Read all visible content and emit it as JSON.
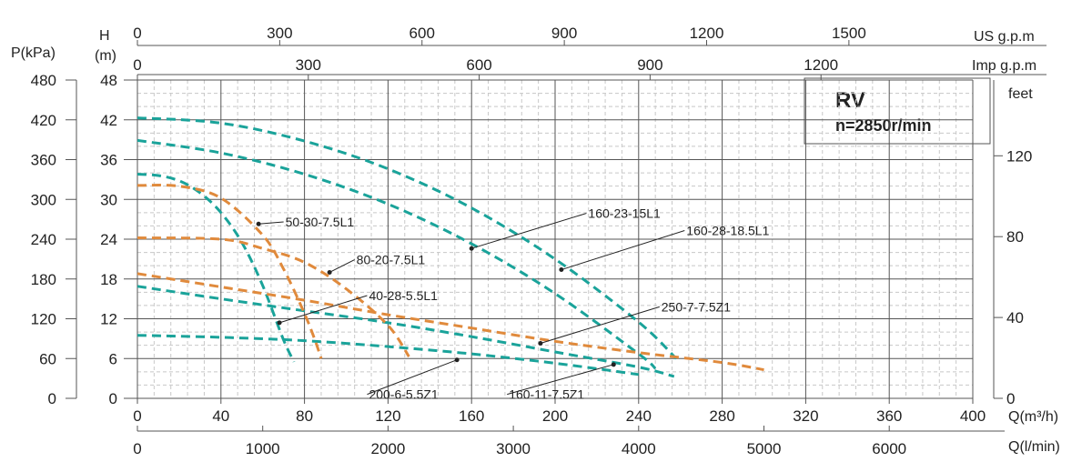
{
  "chart_data": {
    "type": "line",
    "title_box": {
      "model": "RV",
      "speed": "n=2850r/min"
    },
    "x_axis": {
      "label": "Q(m³/h)",
      "range": [
        0,
        400
      ],
      "ticks": [
        "0",
        "40",
        "80",
        "120",
        "160",
        "200",
        "240",
        "280",
        "320",
        "360",
        "400"
      ]
    },
    "x_axis_ls": {
      "label": "Q(l/min)",
      "ticks": [
        {
          "value": 0,
          "label": "0"
        },
        {
          "value": 1000,
          "label": "1000"
        },
        {
          "value": 2000,
          "label": "2000"
        },
        {
          "value": 3000,
          "label": "3000"
        },
        {
          "value": 4000,
          "label": "4000"
        },
        {
          "value": 5000,
          "label": "5000"
        },
        {
          "value": 6000,
          "label": "6000"
        }
      ]
    },
    "x_axis_us": {
      "label": "US g.p.m",
      "ticks": [
        {
          "value": 0,
          "label": "0"
        },
        {
          "value": 300,
          "label": "300"
        },
        {
          "value": 600,
          "label": "600"
        },
        {
          "value": 900,
          "label": "900"
        },
        {
          "value": 1200,
          "label": "1200"
        },
        {
          "value": 1500,
          "label": "1500"
        }
      ]
    },
    "x_axis_imp": {
      "label": "Imp g.p.m",
      "ticks": [
        {
          "value": 0,
          "label": "0"
        },
        {
          "value": 300,
          "label": "300"
        },
        {
          "value": 600,
          "label": "600"
        },
        {
          "value": 900,
          "label": "900"
        },
        {
          "value": 1200,
          "label": "1200"
        }
      ]
    },
    "y_axis_h": {
      "label_line1": "H",
      "label_line2": "(m)",
      "range": [
        0,
        48
      ],
      "ticks": [
        "0",
        "6",
        "12",
        "18",
        "24",
        "30",
        "36",
        "42",
        "48"
      ]
    },
    "y_axis_p": {
      "label": "P(kPa)",
      "ticks": [
        "0",
        "60",
        "120",
        "180",
        "240",
        "300",
        "360",
        "420",
        "480"
      ]
    },
    "y_axis_ft": {
      "label": "feet",
      "ticks": [
        {
          "value": 0,
          "label": "0"
        },
        {
          "value": 40,
          "label": "40"
        },
        {
          "value": 80,
          "label": "80"
        },
        {
          "value": 120,
          "label": "120"
        }
      ]
    },
    "grid": true,
    "colors": {
      "teal": "#1aa39a",
      "orange": "#e08a3c",
      "grid": "#555555",
      "minor_grid": "#c8c8c8"
    },
    "series": [
      {
        "name": "160-23-15L1",
        "color": "teal",
        "x": [
          0,
          40,
          80,
          120,
          160,
          200,
          240,
          258
        ],
        "y": [
          42.3,
          41.5,
          38.8,
          34.6,
          28.7,
          21.0,
          11.5,
          6.0
        ]
      },
      {
        "name": "160-28-18.5L1",
        "color": "teal",
        "x": [
          0,
          40,
          80,
          120,
          160,
          200,
          240,
          248
        ],
        "y": [
          38.9,
          37.0,
          33.8,
          29.3,
          23.3,
          15.8,
          6.7,
          4.5
        ]
      },
      {
        "name": "40-28-5.5L1",
        "color": "teal",
        "x": [
          0,
          10,
          20,
          30,
          40,
          50,
          60,
          70,
          75
        ],
        "y": [
          33.8,
          33.6,
          32.8,
          31.0,
          28.0,
          23.5,
          17.0,
          8.8,
          5.5
        ]
      },
      {
        "name": "160-11-7.5Z1",
        "color": "teal",
        "x": [
          0,
          40,
          80,
          120,
          160,
          200,
          240,
          257
        ],
        "y": [
          16.9,
          15.0,
          13.2,
          11.4,
          9.3,
          7.0,
          4.7,
          3.3
        ]
      },
      {
        "name": "200-6-5.5Z1",
        "color": "teal",
        "x": [
          0,
          40,
          80,
          120,
          160,
          200,
          240
        ],
        "y": [
          9.5,
          9.2,
          8.7,
          7.8,
          6.7,
          5.3,
          3.6
        ]
      },
      {
        "name": "50-30-7.5L1",
        "color": "orange",
        "x": [
          0,
          20,
          40,
          60,
          70,
          80,
          85,
          88
        ],
        "y": [
          32.1,
          32.0,
          30.2,
          24.6,
          19.5,
          12.8,
          8.8,
          6.0
        ]
      },
      {
        "name": "80-20-7.5L1",
        "color": "orange",
        "x": [
          0,
          40,
          60,
          80,
          100,
          120,
          130
        ],
        "y": [
          24.2,
          24.0,
          22.6,
          20.5,
          16.5,
          11.0,
          6.3
        ]
      },
      {
        "name": "250-7-7.5Z1",
        "color": "orange",
        "x": [
          0,
          40,
          80,
          120,
          160,
          200,
          240,
          280,
          300
        ],
        "y": [
          18.8,
          16.8,
          14.8,
          12.6,
          10.6,
          8.6,
          6.9,
          5.4,
          4.3
        ]
      }
    ],
    "callouts": [
      {
        "series": "50-30-7.5L1",
        "text": "50-30-7.5L1",
        "at": [
          58,
          26.3
        ],
        "label_at": [
          70,
          26.6
        ]
      },
      {
        "series": "80-20-7.5L1",
        "text": "80-20-7.5L1",
        "at": [
          92,
          19.0
        ],
        "label_at": [
          104,
          20.9
        ]
      },
      {
        "series": "40-28-5.5L1",
        "text": "40-28-5.5L1",
        "at": [
          68,
          11.4
        ],
        "label_at": [
          110,
          15.5
        ]
      },
      {
        "series": "160-23-15L1",
        "text": "160-23-15L1",
        "at": [
          160,
          22.6
        ],
        "label_at": [
          215,
          27.9
        ]
      },
      {
        "series": "160-28-18.5L1",
        "text": "160-28-18.5L1",
        "at": [
          203,
          19.4
        ],
        "label_at": [
          262,
          25.3
        ]
      },
      {
        "series": "250-7-7.5Z1",
        "text": "250-7-7.5Z1",
        "at": [
          193,
          8.3
        ],
        "label_at": [
          250,
          13.8
        ]
      },
      {
        "series": "200-6-5.5Z1",
        "text": "200-6-5.5Z1",
        "at": [
          153,
          5.8
        ],
        "label_at": [
          110,
          0.6
        ]
      },
      {
        "series": "160-11-7.5Z1",
        "text": "160-11-7.5Z1",
        "at": [
          228,
          5.1
        ],
        "label_at": [
          177,
          0.6
        ]
      }
    ]
  }
}
